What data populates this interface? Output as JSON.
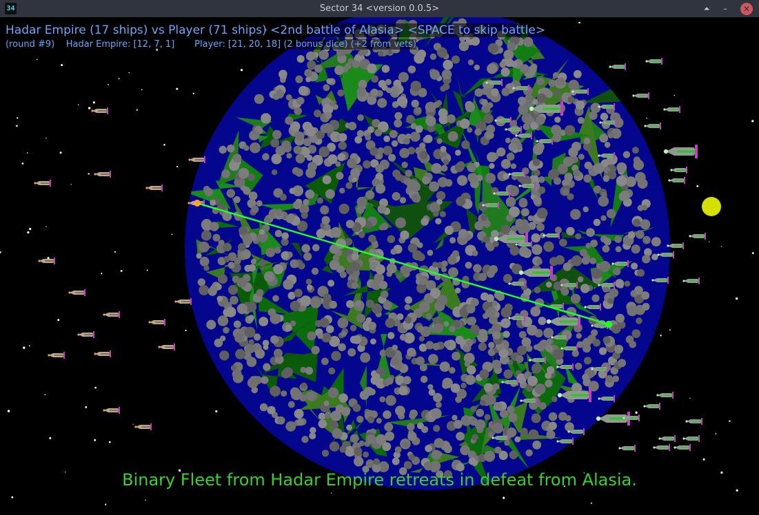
{
  "window": {
    "icon_text": "34",
    "title": "Sector 34   <version 0.0.5>",
    "buttons": {
      "shade": "⏶",
      "minimize": "–",
      "close": "✕"
    }
  },
  "hud": {
    "line1": "Hadar Empire (17 ships) vs Player (71 ships) <2nd battle of Alasia> <SPACE to skip battle>",
    "round": "(round #9)",
    "enemy_dice": "Hadar Empire: [12, 7, 1]",
    "player_dice": "Player: [21, 20, 18] (2 bonus dice) (+2 from vets)"
  },
  "battle": {
    "attacker_ships": 17,
    "defender_ships": 71,
    "planet": "Alasia"
  },
  "message": "Binary Fleet from Hadar Empire retreats in defeat from Alasia.",
  "colors": {
    "hud_text": "#6ea6f5",
    "message": "#39d12b",
    "laser": "#22ff22",
    "planet_ocean": "#05068e",
    "sun": "#d6e000"
  },
  "icons": [
    "ship-icon",
    "laser-beam",
    "planet",
    "sun"
  ]
}
